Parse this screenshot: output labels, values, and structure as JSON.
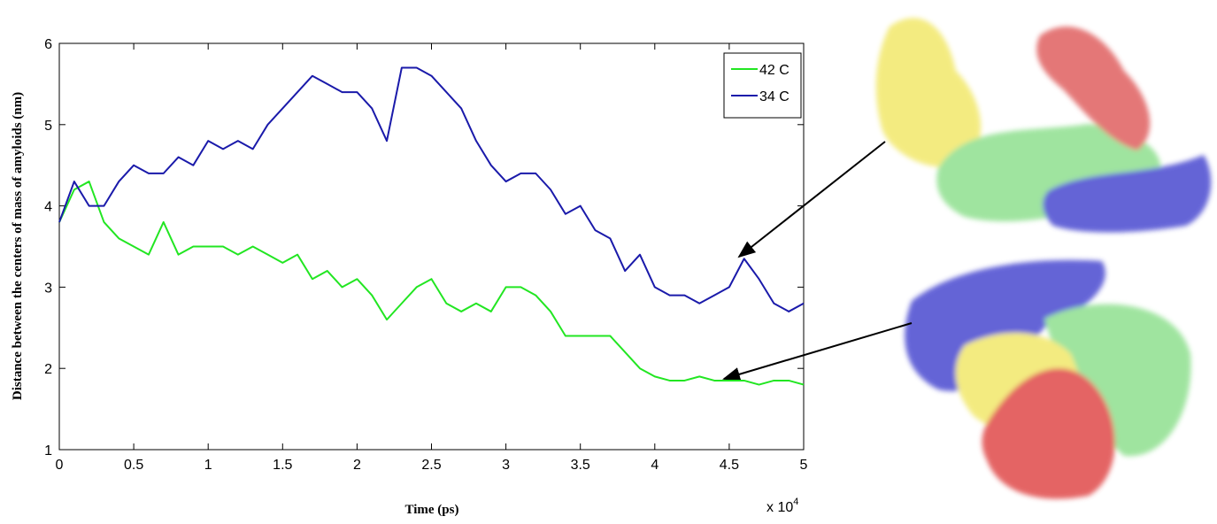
{
  "chart_data": {
    "type": "line",
    "x_label": "Time (ps)",
    "y_label": "Distance between the centers of mass of amyloids (nm)",
    "x_multiplier": {
      "base": "x 10",
      "exponent": "4"
    },
    "x": [
      0,
      0.1,
      0.2,
      0.3,
      0.4,
      0.5,
      0.6,
      0.7,
      0.8,
      0.9,
      1,
      1.1,
      1.2,
      1.3,
      1.4,
      1.5,
      1.6,
      1.7,
      1.8,
      1.9,
      2,
      2.1,
      2.2,
      2.3,
      2.4,
      2.5,
      2.6,
      2.7,
      2.8,
      2.9,
      3,
      3.1,
      3.2,
      3.3,
      3.4,
      3.5,
      3.6,
      3.7,
      3.8,
      3.9,
      4,
      4.1,
      4.2,
      4.3,
      4.4,
      4.5,
      4.6,
      4.7,
      4.8,
      4.9,
      5
    ],
    "series": [
      {
        "name": "42 C",
        "color": "#22e622",
        "values": [
          3.8,
          4.2,
          4.3,
          3.8,
          3.6,
          3.5,
          3.4,
          3.8,
          3.4,
          3.5,
          3.5,
          3.5,
          3.4,
          3.5,
          3.4,
          3.3,
          3.4,
          3.1,
          3.2,
          3.0,
          3.1,
          2.9,
          2.6,
          2.8,
          3.0,
          3.1,
          2.8,
          2.7,
          2.8,
          2.7,
          3.0,
          3.0,
          2.9,
          2.7,
          2.4,
          2.4,
          2.4,
          2.4,
          2.2,
          2.0,
          1.9,
          1.85,
          1.85,
          1.9,
          1.85,
          1.85,
          1.85,
          1.8,
          1.85,
          1.85,
          1.8
        ]
      },
      {
        "name": "34 C",
        "color": "#1a1aaa",
        "values": [
          3.8,
          4.3,
          4.0,
          4.0,
          4.3,
          4.5,
          4.4,
          4.4,
          4.6,
          4.5,
          4.8,
          4.7,
          4.8,
          4.7,
          5.0,
          5.2,
          5.4,
          5.6,
          5.5,
          5.4,
          5.4,
          5.2,
          4.8,
          5.7,
          5.7,
          5.6,
          5.4,
          5.2,
          4.8,
          4.5,
          4.3,
          4.4,
          4.4,
          4.2,
          3.9,
          4.0,
          3.7,
          3.6,
          3.2,
          3.4,
          3.0,
          2.9,
          2.9,
          2.8,
          2.9,
          3.0,
          3.35,
          3.1,
          2.8,
          2.7,
          2.8
        ]
      }
    ],
    "xlim": [
      0,
      5
    ],
    "xticks": [
      0,
      0.5,
      1,
      1.5,
      2,
      2.5,
      3,
      3.5,
      4,
      4.5,
      5
    ],
    "ylim": [
      1,
      6
    ],
    "yticks": [
      1,
      2,
      3,
      4,
      5,
      6
    ],
    "grid": false,
    "legend": "upper right"
  }
}
